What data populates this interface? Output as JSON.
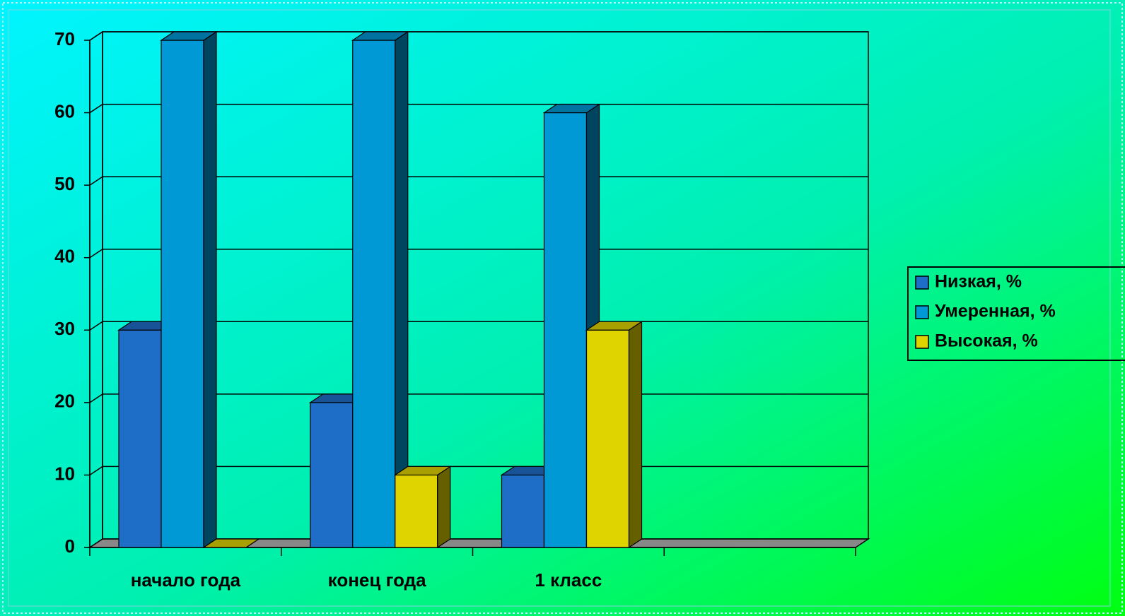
{
  "chart_data": {
    "type": "bar3d",
    "categories": [
      "начало года",
      "конец года",
      "1 класс",
      null
    ],
    "series": [
      {
        "name": "Низкая, %",
        "color": "#1e6ec8",
        "values": [
          30,
          20,
          10,
          null
        ]
      },
      {
        "name": "Умеренная, %",
        "color": "#0099d6",
        "values": [
          70,
          70,
          60,
          null
        ]
      },
      {
        "name": "Высокая, %",
        "color": "#e0d400",
        "values": [
          0,
          10,
          30,
          null
        ]
      }
    ],
    "ylim": [
      0,
      70
    ],
    "yticks": [
      0,
      10,
      20,
      30,
      40,
      50,
      60,
      70
    ],
    "grid": true,
    "legend": "right"
  }
}
